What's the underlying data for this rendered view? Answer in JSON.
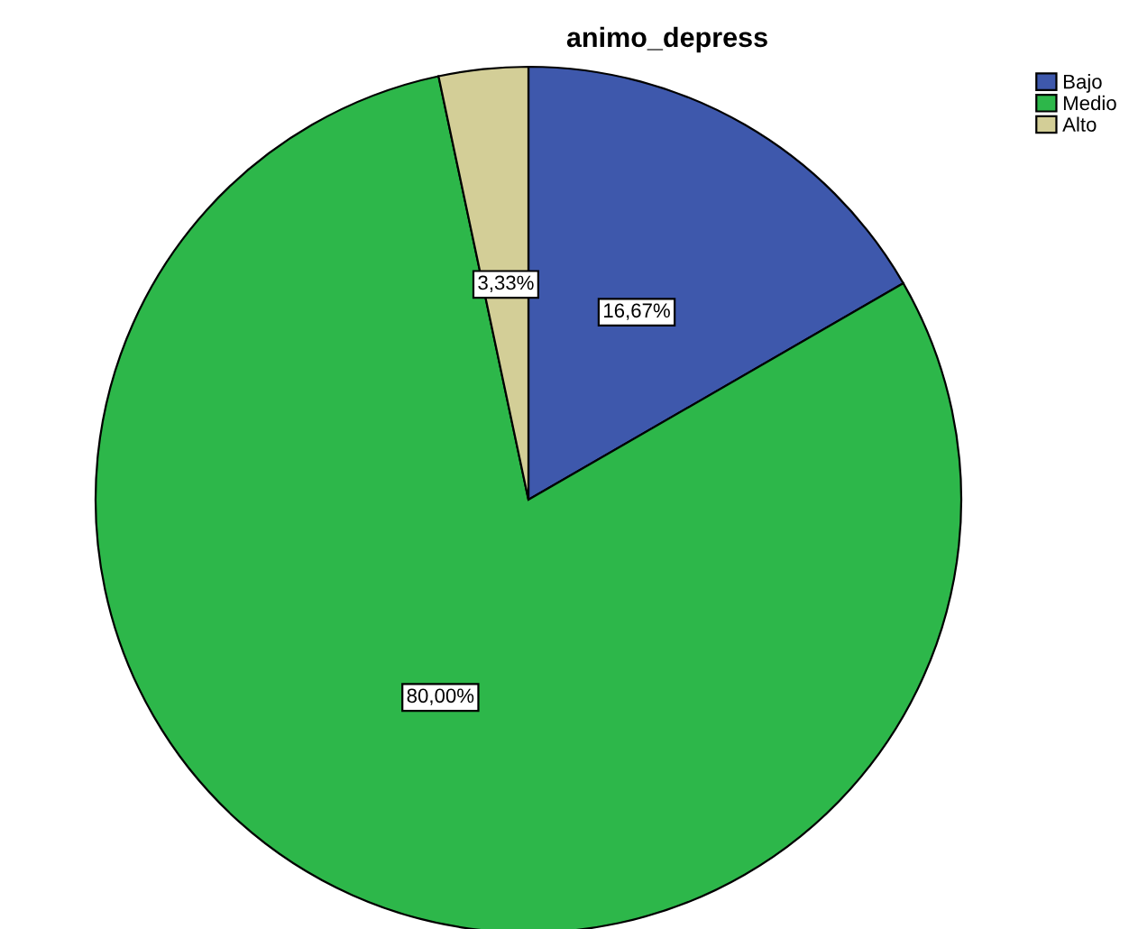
{
  "chart_data": {
    "type": "pie",
    "title": "animo_depress",
    "categories": [
      "Bajo",
      "Medio",
      "Alto"
    ],
    "values": [
      16.67,
      80.0,
      3.33
    ],
    "value_labels": [
      "16,67%",
      "80,00%",
      "3,33%"
    ],
    "colors": [
      "#3e58ac",
      "#2db74a",
      "#d3ce97"
    ],
    "legend": "top right"
  }
}
